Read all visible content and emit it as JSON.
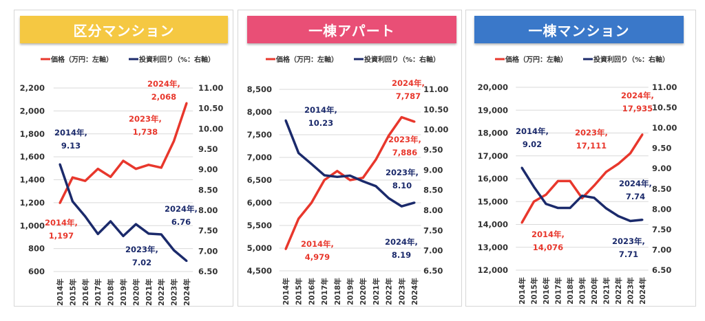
{
  "legend": {
    "price": "価格（万円：左軸）",
    "yield": "投資利回り（%：右軸）"
  },
  "colors": {
    "price": "#e8372c",
    "yield": "#1b2a6b",
    "grid": "#d9d9d9",
    "annotation_line": "#a6a6a6"
  },
  "chart_data": [
    {
      "type": "line",
      "title": "区分マンション",
      "banner_color": "#f5c842",
      "categories": [
        "2014年",
        "2015年",
        "2016年",
        "2017年",
        "2018年",
        "2019年",
        "2020年",
        "2021年",
        "2022年",
        "2023年",
        "2024年"
      ],
      "left_axis": {
        "ylim": [
          600,
          2200
        ],
        "ticks": [
          "2,200",
          "2,000",
          "1,800",
          "1,600",
          "1,400",
          "1,200",
          "1,000",
          "800",
          "600"
        ],
        "tick_values": [
          2200,
          2000,
          1800,
          1600,
          1400,
          1200,
          1000,
          800,
          600
        ]
      },
      "right_axis": {
        "ylim": [
          6.5,
          11.0
        ],
        "ticks": [
          "11.00",
          "10.50",
          "10.00",
          "9.50",
          "9.00",
          "8.50",
          "8.00",
          "7.50",
          "7.00",
          "6.50"
        ],
        "tick_values": [
          11,
          10.5,
          10,
          9.5,
          9,
          8.5,
          8,
          7.5,
          7,
          6.5
        ]
      },
      "grid": true,
      "legend_placement": "top",
      "series": [
        {
          "name": "価格（万円：左軸）",
          "axis": "left",
          "values": [
            1197,
            1420,
            1390,
            1495,
            1425,
            1565,
            1495,
            1530,
            1505,
            1738,
            2068
          ]
        },
        {
          "name": "投資利回り（%：右軸）",
          "axis": "right",
          "values": [
            9.13,
            8.22,
            7.85,
            7.42,
            7.73,
            7.37,
            7.66,
            7.43,
            7.41,
            7.02,
            6.76
          ]
        }
      ],
      "annotations": [
        {
          "series": "price",
          "year": "2024年,",
          "value": "2,068"
        },
        {
          "series": "price",
          "year": "2023年,",
          "value": "1,738"
        },
        {
          "series": "price",
          "year": "2014年,",
          "value": "1,197"
        },
        {
          "series": "yield",
          "year": "2014年,",
          "value": "9.13"
        },
        {
          "series": "yield",
          "year": "2023年,",
          "value": "7.02"
        },
        {
          "series": "yield",
          "year": "2024年,",
          "value": "6.76"
        }
      ]
    },
    {
      "type": "line",
      "title": "一棟アパート",
      "banner_color": "#e94f76",
      "categories": [
        "2014年",
        "2015年",
        "2016年",
        "2017年",
        "2018年",
        "2019年",
        "2020年",
        "2021年",
        "2022年",
        "2023年",
        "2024年"
      ],
      "left_axis": {
        "ylim": [
          4500,
          8500
        ],
        "ticks": [
          "8,500",
          "8,000",
          "7,500",
          "7,000",
          "6,500",
          "6,000",
          "5,500",
          "5,000",
          "4,500"
        ],
        "tick_values": [
          8500,
          8000,
          7500,
          7000,
          6500,
          6000,
          5500,
          5000,
          4500
        ]
      },
      "right_axis": {
        "ylim": [
          6.5,
          11.0
        ],
        "ticks": [
          "11.00",
          "10.50",
          "10.00",
          "9.50",
          "9.00",
          "8.50",
          "8.00",
          "7.50",
          "7.00",
          "6.50"
        ],
        "tick_values": [
          11,
          10.5,
          10,
          9.5,
          9,
          8.5,
          8,
          7.5,
          7,
          6.5
        ]
      },
      "grid": true,
      "legend_placement": "top",
      "series": [
        {
          "name": "価格（万円：左軸）",
          "axis": "left",
          "values": [
            4979,
            5650,
            6000,
            6500,
            6700,
            6500,
            6550,
            6950,
            7480,
            7886,
            7787
          ]
        },
        {
          "name": "投資利回り（%：右軸）",
          "axis": "right",
          "values": [
            10.23,
            9.42,
            9.15,
            8.87,
            8.83,
            8.86,
            8.72,
            8.6,
            8.3,
            8.1,
            8.19
          ]
        }
      ],
      "annotations": [
        {
          "series": "price",
          "year": "2024年,",
          "value": "7,787"
        },
        {
          "series": "price",
          "year": "2023年,",
          "value": "7,886"
        },
        {
          "series": "price",
          "year": "2014年,",
          "value": "4,979"
        },
        {
          "series": "yield",
          "year": "2014年,",
          "value": "10.23"
        },
        {
          "series": "yield",
          "year": "2023年,",
          "value": "8.10"
        },
        {
          "series": "yield",
          "year": "2024年,",
          "value": "8.19"
        }
      ]
    },
    {
      "type": "line",
      "title": "一棟マンション",
      "banner_color": "#3a78c9",
      "categories": [
        "2014年",
        "2015年",
        "2016年",
        "2017年",
        "2018年",
        "2019年",
        "2020年",
        "2021年",
        "2022年",
        "2023年",
        "2024年"
      ],
      "left_axis": {
        "ylim": [
          12000,
          20000
        ],
        "ticks": [
          "20,000",
          "19,000",
          "18,000",
          "17,000",
          "16,000",
          "15,000",
          "14,000",
          "13,000",
          "12,000"
        ],
        "tick_values": [
          20000,
          19000,
          18000,
          17000,
          16000,
          15000,
          14000,
          13000,
          12000
        ]
      },
      "right_axis": {
        "ylim": [
          6.5,
          11.0
        ],
        "ticks": [
          "11.00",
          "10.50",
          "10.00",
          "9.50",
          "9.00",
          "8.50",
          "8.00",
          "7.50",
          "7.00",
          "6.50"
        ],
        "tick_values": [
          11,
          10.5,
          10,
          9.5,
          9,
          8.5,
          8,
          7.5,
          7,
          6.5
        ]
      },
      "grid": true,
      "legend_placement": "top",
      "series": [
        {
          "name": "価格（万円：左軸）",
          "axis": "left",
          "values": [
            14076,
            15000,
            15300,
            15900,
            15900,
            15150,
            15700,
            16300,
            16650,
            17111,
            17935
          ]
        },
        {
          "name": "投資利回り（%：右軸）",
          "axis": "right",
          "values": [
            9.02,
            8.55,
            8.13,
            8.03,
            8.03,
            8.33,
            8.28,
            8.02,
            7.83,
            7.71,
            7.74
          ]
        }
      ],
      "annotations": [
        {
          "series": "price",
          "year": "2024年,",
          "value": "17,935"
        },
        {
          "series": "price",
          "year": "2023年,",
          "value": "17,111"
        },
        {
          "series": "price",
          "year": "2014年,",
          "value": "14,076"
        },
        {
          "series": "yield",
          "year": "2014年,",
          "value": "9.02"
        },
        {
          "series": "yield",
          "year": "2024年,",
          "value": "7.74"
        },
        {
          "series": "yield",
          "year": "2023年,",
          "value": "7.71"
        }
      ]
    }
  ]
}
